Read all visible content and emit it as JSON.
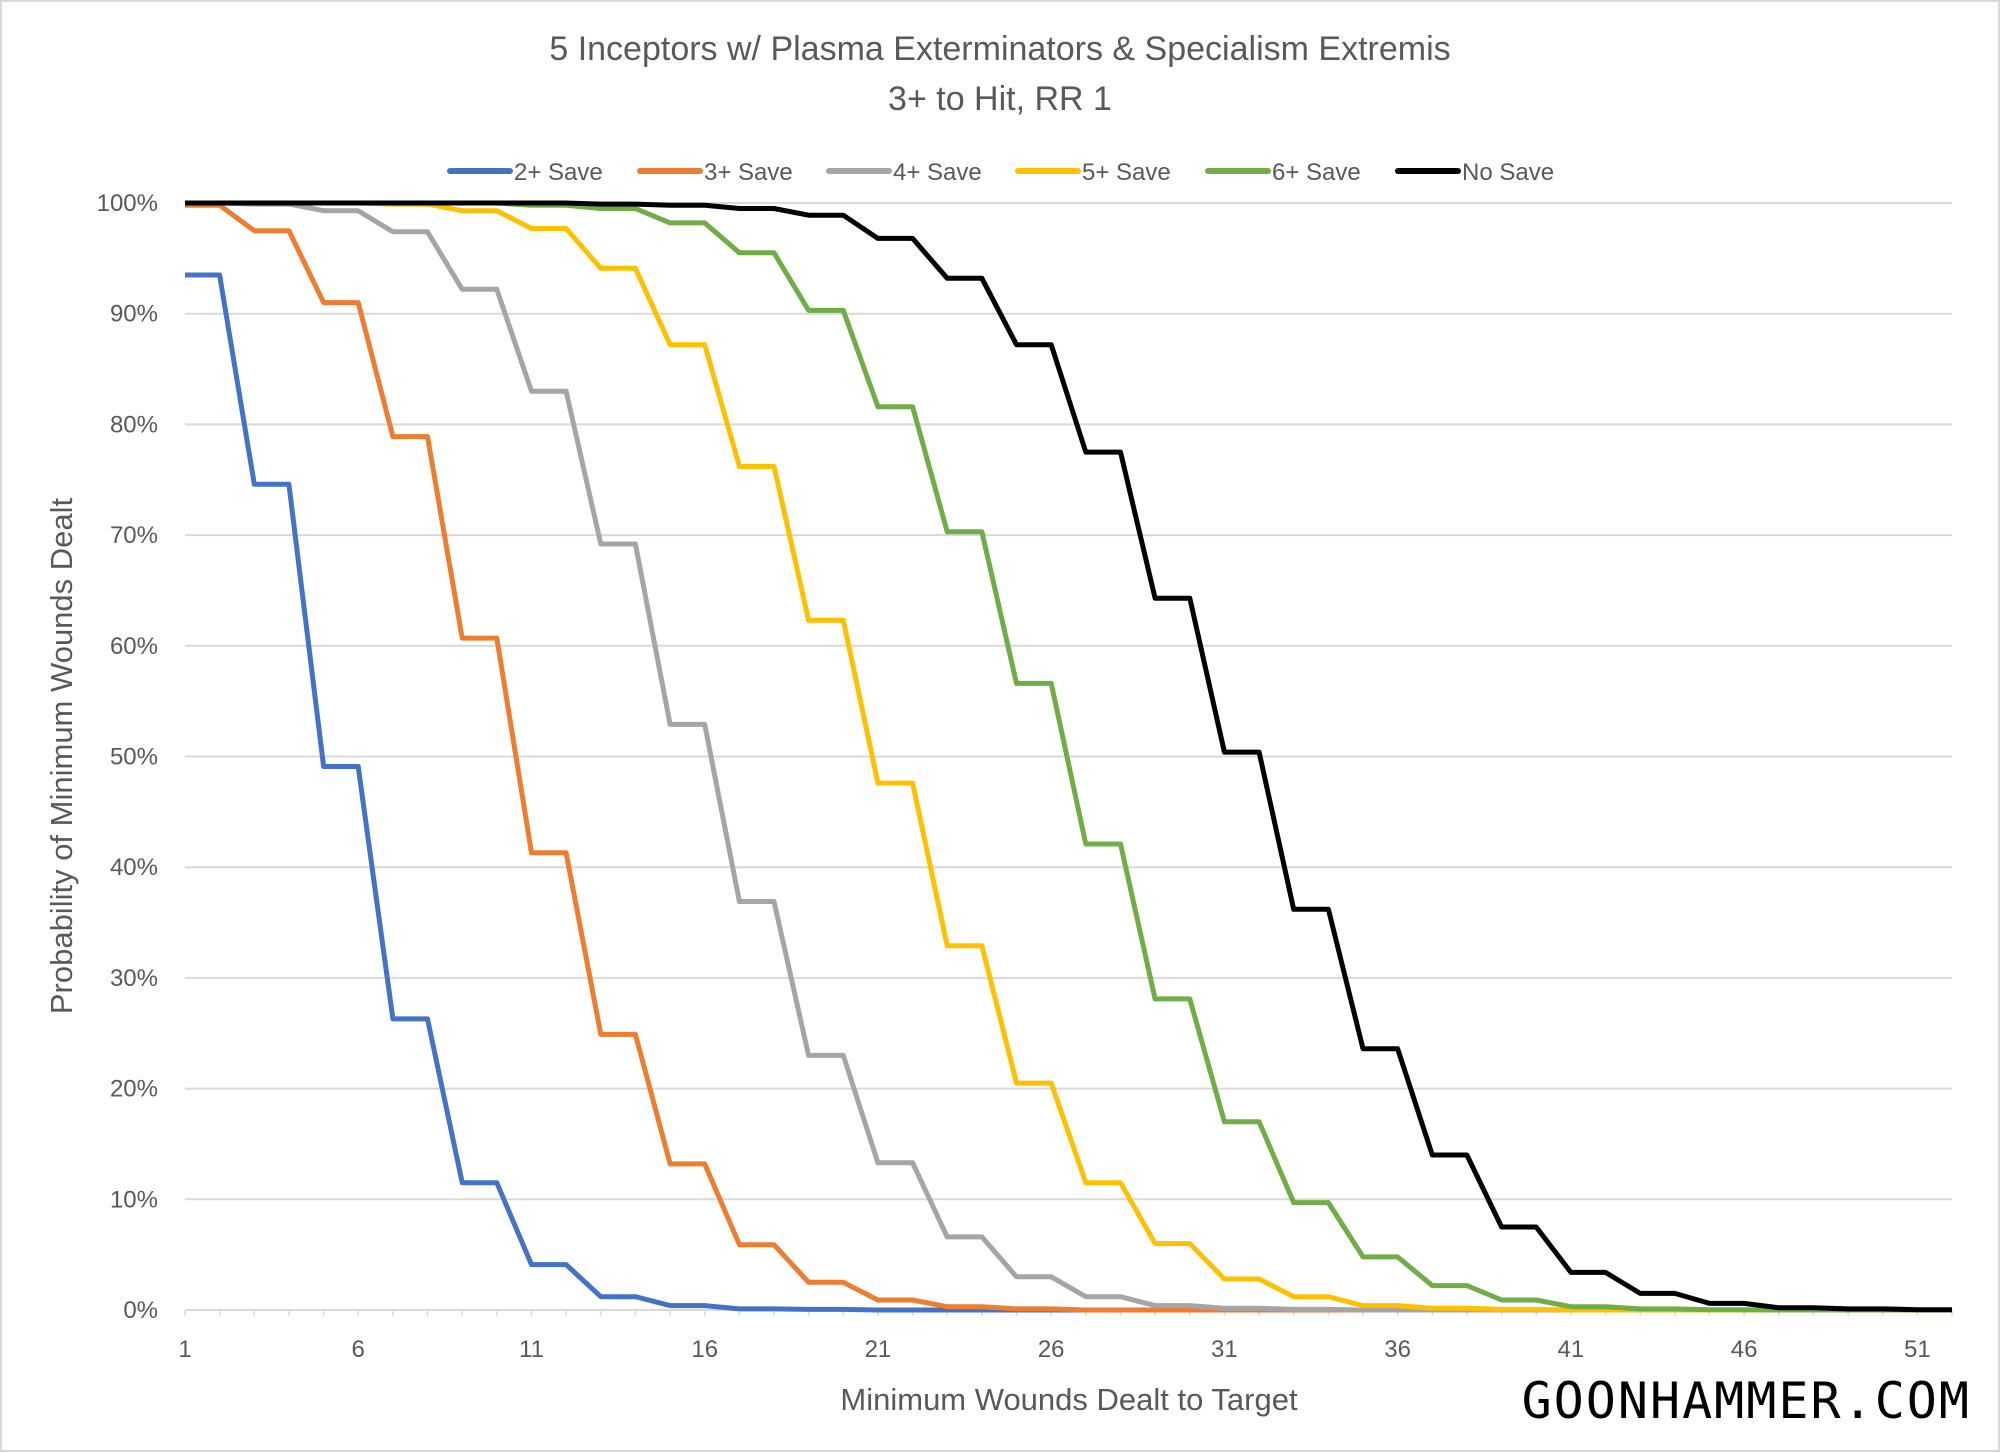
{
  "chart_data": {
    "type": "line",
    "title": "5 Inceptors w/ Plasma Exterminators & Specialism Extremis",
    "subtitle": "3+ to Hit, RR 1",
    "xlabel": "Minimum Wounds Dealt to Target",
    "ylabel": "Probability of Minimum Wounds Dealt",
    "xlim": [
      1,
      52
    ],
    "ylim": [
      0,
      100
    ],
    "x_tick_labels": [
      "1",
      "6",
      "11",
      "16",
      "21",
      "26",
      "31",
      "36",
      "41",
      "46",
      "51"
    ],
    "y_tick_labels": [
      "0%",
      "10%",
      "20%",
      "30%",
      "40%",
      "50%",
      "60%",
      "70%",
      "80%",
      "90%",
      "100%"
    ],
    "grid": "horizontal",
    "legend_placement": "top",
    "x": [
      1,
      2,
      3,
      4,
      5,
      6,
      7,
      8,
      9,
      10,
      11,
      12,
      13,
      14,
      15,
      16,
      17,
      18,
      19,
      20,
      21,
      22,
      23,
      24,
      25,
      26,
      27,
      28,
      29,
      30,
      31,
      32,
      33,
      34,
      35,
      36,
      37,
      38,
      39,
      40,
      41,
      42,
      43,
      44,
      45,
      46,
      47,
      48,
      49,
      50,
      51,
      52
    ],
    "series": [
      {
        "name": "2+ Save",
        "color": "#4472c4",
        "values": [
          93.5,
          93.5,
          74.6,
          74.6,
          49.1,
          49.1,
          26.3,
          26.3,
          11.5,
          11.5,
          4.1,
          4.1,
          1.2,
          1.2,
          0.4,
          0.4,
          0.1,
          0.1,
          0.05,
          0.05,
          0,
          0,
          0,
          0,
          0,
          0,
          0,
          0,
          0,
          0,
          0,
          0,
          0,
          0,
          0,
          0,
          0,
          0,
          0,
          0,
          0,
          0,
          0,
          0,
          0,
          0,
          0,
          0,
          0,
          0,
          0,
          0
        ]
      },
      {
        "name": "3+ Save",
        "color": "#ed7d31",
        "values": [
          99.8,
          99.8,
          97.5,
          97.5,
          91.0,
          91.0,
          78.9,
          78.9,
          60.7,
          60.7,
          41.3,
          41.3,
          24.9,
          24.9,
          13.2,
          13.2,
          5.9,
          5.9,
          2.5,
          2.5,
          0.9,
          0.9,
          0.3,
          0.3,
          0.1,
          0.1,
          0,
          0,
          0,
          0,
          0,
          0,
          0,
          0,
          0,
          0,
          0,
          0,
          0,
          0,
          0,
          0,
          0,
          0,
          0,
          0,
          0,
          0,
          0,
          0,
          0,
          0
        ]
      },
      {
        "name": "4+ Save",
        "color": "#a5a5a5",
        "values": [
          100,
          100,
          99.9,
          99.9,
          99.3,
          99.3,
          97.4,
          97.4,
          92.2,
          92.2,
          83.0,
          83.0,
          69.2,
          69.2,
          52.9,
          52.9,
          36.9,
          36.9,
          23.0,
          23.0,
          13.3,
          13.3,
          6.6,
          6.6,
          3.0,
          3.0,
          1.2,
          1.2,
          0.4,
          0.4,
          0.15,
          0.15,
          0.05,
          0.05,
          0,
          0,
          0,
          0,
          0,
          0,
          0,
          0,
          0,
          0,
          0,
          0,
          0,
          0,
          0,
          0,
          0,
          0
        ]
      },
      {
        "name": "5+ Save",
        "color": "#ffc000",
        "values": [
          100,
          100,
          100,
          100,
          100,
          100,
          99.9,
          99.9,
          99.3,
          99.3,
          97.7,
          97.7,
          94.1,
          94.1,
          87.2,
          87.2,
          76.2,
          76.2,
          62.3,
          62.3,
          47.6,
          47.6,
          32.9,
          32.9,
          20.5,
          20.5,
          11.5,
          11.5,
          6.0,
          6.0,
          2.8,
          2.8,
          1.2,
          1.2,
          0.4,
          0.4,
          0.15,
          0.15,
          0.05,
          0.05,
          0,
          0,
          0,
          0,
          0,
          0,
          0,
          0,
          0,
          0,
          0,
          0
        ]
      },
      {
        "name": "6+ Save",
        "color": "#70ad47",
        "values": [
          100,
          100,
          100,
          100,
          100,
          100,
          100,
          100,
          100,
          100,
          99.8,
          99.8,
          99.5,
          99.5,
          98.2,
          98.2,
          95.5,
          95.5,
          90.3,
          90.3,
          81.6,
          81.6,
          70.3,
          70.3,
          56.6,
          56.6,
          42.1,
          42.1,
          28.1,
          28.1,
          17.0,
          17.0,
          9.7,
          9.7,
          4.8,
          4.8,
          2.2,
          2.2,
          0.9,
          0.9,
          0.3,
          0.3,
          0.1,
          0.1,
          0.03,
          0.03,
          0,
          0,
          0,
          0,
          0,
          0
        ]
      },
      {
        "name": "No Save",
        "color": "#000000",
        "values": [
          100,
          100,
          100,
          100,
          100,
          100,
          100,
          100,
          100,
          100,
          100,
          100,
          99.9,
          99.9,
          99.8,
          99.8,
          99.5,
          99.5,
          98.9,
          98.9,
          96.8,
          96.8,
          93.2,
          93.2,
          87.2,
          87.2,
          77.5,
          77.5,
          64.3,
          64.3,
          50.4,
          50.4,
          36.2,
          36.2,
          23.6,
          23.6,
          14.0,
          14.0,
          7.5,
          7.5,
          3.4,
          3.4,
          1.5,
          1.5,
          0.6,
          0.6,
          0.2,
          0.2,
          0.1,
          0.1,
          0.03,
          0.03
        ]
      }
    ]
  },
  "watermark": "GOONHAMMER.COM"
}
